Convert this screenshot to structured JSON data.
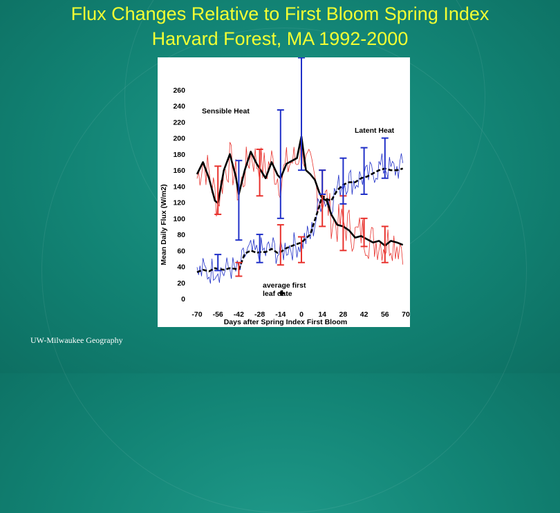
{
  "slide": {
    "title_line1": "Flux Changes Relative to First Bloom Spring Index",
    "title_line2": "Harvard Forest, MA 1992-2000",
    "credit": "UW-Milwaukee Geography",
    "title_color": "#f2ff33",
    "background_color": "#128374"
  },
  "chart_data": {
    "type": "line",
    "xlabel": "Days after Spring Index First Bloom",
    "ylabel": "Mean Daily Flux (W/m2)",
    "xlim": [
      -70,
      70
    ],
    "ylim": [
      0,
      260
    ],
    "x_ticks": [
      -70,
      -56,
      -42,
      -28,
      -14,
      0,
      14,
      28,
      42,
      56,
      70
    ],
    "y_ticks": [
      0,
      20,
      40,
      60,
      80,
      100,
      120,
      140,
      160,
      180,
      200,
      220,
      240,
      260
    ],
    "grid": false,
    "annotations": {
      "sensible_label": "Sensible Heat",
      "latent_label": "Latent Heat",
      "leaf_line1": "average first",
      "leaf_line2": "leaf date",
      "leaf_marker": {
        "x": -13,
        "y": 7
      }
    },
    "series": [
      {
        "name": "Sensible Heat",
        "color": "#e8312c",
        "x": [
          -70,
          -66,
          -62,
          -58,
          -56,
          -52,
          -48,
          -44,
          -42,
          -38,
          -34,
          -30,
          -28,
          -24,
          -20,
          -16,
          -14,
          -10,
          -6,
          -3,
          0,
          3,
          6,
          9,
          12,
          14,
          17,
          20,
          24,
          28,
          32,
          36,
          40,
          44,
          48,
          52,
          56,
          60,
          64,
          68
        ],
        "y": [
          150,
          172,
          155,
          130,
          119,
          158,
          172,
          150,
          128,
          158,
          182,
          170,
          168,
          160,
          171,
          152,
          148,
          165,
          172,
          170,
          200,
          165,
          160,
          145,
          128,
          125,
          123,
          100,
          92,
          93,
          90,
          78,
          83,
          76,
          70,
          72,
          68,
          74,
          70,
          68
        ]
      },
      {
        "name": "Latent Heat",
        "color": "#2030c8",
        "x": [
          -70,
          -66,
          -62,
          -58,
          -56,
          -52,
          -48,
          -44,
          -42,
          -38,
          -34,
          -30,
          -28,
          -24,
          -20,
          -16,
          -14,
          -10,
          -6,
          -3,
          0,
          3,
          6,
          9,
          12,
          14,
          17,
          20,
          24,
          28,
          32,
          36,
          40,
          44,
          48,
          52,
          56,
          60,
          64,
          68
        ],
        "y": [
          30,
          35,
          32,
          40,
          38,
          33,
          40,
          34,
          32,
          55,
          58,
          55,
          60,
          57,
          64,
          58,
          55,
          66,
          65,
          68,
          70,
          75,
          78,
          95,
          118,
          128,
          122,
          120,
          138,
          145,
          148,
          145,
          152,
          150,
          158,
          163,
          165,
          160,
          162,
          165
        ]
      },
      {
        "name": "Sensible Heat smoothed",
        "color": "#000000",
        "x": [
          -70,
          -66,
          -62,
          -58,
          -56,
          -52,
          -48,
          -44,
          -42,
          -38,
          -34,
          -30,
          -28,
          -24,
          -20,
          -16,
          -14,
          -10,
          -6,
          -3,
          0,
          3,
          6,
          9,
          12,
          14,
          17,
          20,
          24,
          28,
          32,
          36,
          40,
          44,
          48,
          52,
          56,
          60,
          64,
          68
        ],
        "y": [
          155,
          170,
          150,
          122,
          119,
          160,
          180,
          152,
          130,
          160,
          183,
          168,
          162,
          150,
          170,
          154,
          150,
          168,
          172,
          175,
          202,
          160,
          155,
          148,
          132,
          125,
          122,
          105,
          92,
          90,
          85,
          76,
          78,
          74,
          70,
          72,
          66,
          72,
          70,
          67
        ]
      },
      {
        "name": "Latent Heat smoothed",
        "color": "#000000",
        "x": [
          -70,
          -66,
          -62,
          -58,
          -56,
          -52,
          -48,
          -44,
          -42,
          -38,
          -34,
          -30,
          -28,
          -24,
          -20,
          -16,
          -14,
          -10,
          -6,
          -3,
          0,
          3,
          6,
          9,
          12,
          14,
          17,
          20,
          24,
          28,
          32,
          36,
          40,
          44,
          48,
          52,
          56,
          60,
          64,
          68
        ],
        "y": [
          33,
          36,
          34,
          38,
          37,
          36,
          38,
          37,
          36,
          56,
          60,
          57,
          58,
          58,
          62,
          57,
          58,
          63,
          66,
          68,
          70,
          75,
          80,
          98,
          115,
          128,
          124,
          122,
          135,
          142,
          145,
          145,
          150,
          152,
          156,
          160,
          162,
          160,
          160,
          162
        ]
      }
    ],
    "error_bars": [
      {
        "series": "Sensible Heat",
        "x": -56,
        "low": 105,
        "high": 165,
        "color": "#e8312c"
      },
      {
        "series": "Latent Heat",
        "x": -56,
        "low": 35,
        "high": 55,
        "color": "#2030c8"
      },
      {
        "series": "Sensible Heat",
        "x": -42,
        "low": 73,
        "high": 172,
        "color": "#2030c8"
      },
      {
        "series": "Latent Heat",
        "x": -42,
        "low": 28,
        "high": 45,
        "color": "#e8312c"
      },
      {
        "series": "Sensible Heat",
        "x": -28,
        "low": 128,
        "high": 186,
        "color": "#e8312c"
      },
      {
        "series": "Latent Heat",
        "x": -28,
        "low": 45,
        "high": 80,
        "color": "#2030c8"
      },
      {
        "series": "Sensible Heat",
        "x": -14,
        "low": 100,
        "high": 235,
        "color": "#2030c8"
      },
      {
        "series": "Latent Heat",
        "x": -14,
        "low": 42,
        "high": 92,
        "color": "#e8312c"
      },
      {
        "series": "Sensible Heat",
        "x": 0,
        "low": 160,
        "high": 300,
        "color": "#2030c8"
      },
      {
        "series": "Latent Heat",
        "x": 0,
        "low": 45,
        "high": 77,
        "color": "#e8312c"
      },
      {
        "series": "Latent Heat",
        "x": 14,
        "low": 90,
        "high": 160,
        "color": "#e8312c"
      },
      {
        "series": "Sensible Heat",
        "x": 14,
        "low": 130,
        "high": 160,
        "color": "#2030c8"
      },
      {
        "series": "Sensible Heat",
        "x": 28,
        "low": 60,
        "high": 128,
        "color": "#e8312c"
      },
      {
        "series": "Latent Heat",
        "x": 28,
        "low": 118,
        "high": 175,
        "color": "#2030c8"
      },
      {
        "series": "Sensible Heat",
        "x": 42,
        "low": 65,
        "high": 100,
        "color": "#e8312c"
      },
      {
        "series": "Latent Heat",
        "x": 42,
        "low": 130,
        "high": 188,
        "color": "#2030c8"
      },
      {
        "series": "Sensible Heat",
        "x": 56,
        "low": 45,
        "high": 90,
        "color": "#e8312c"
      },
      {
        "series": "Latent Heat",
        "x": 56,
        "low": 150,
        "high": 200,
        "color": "#2030c8"
      }
    ]
  }
}
